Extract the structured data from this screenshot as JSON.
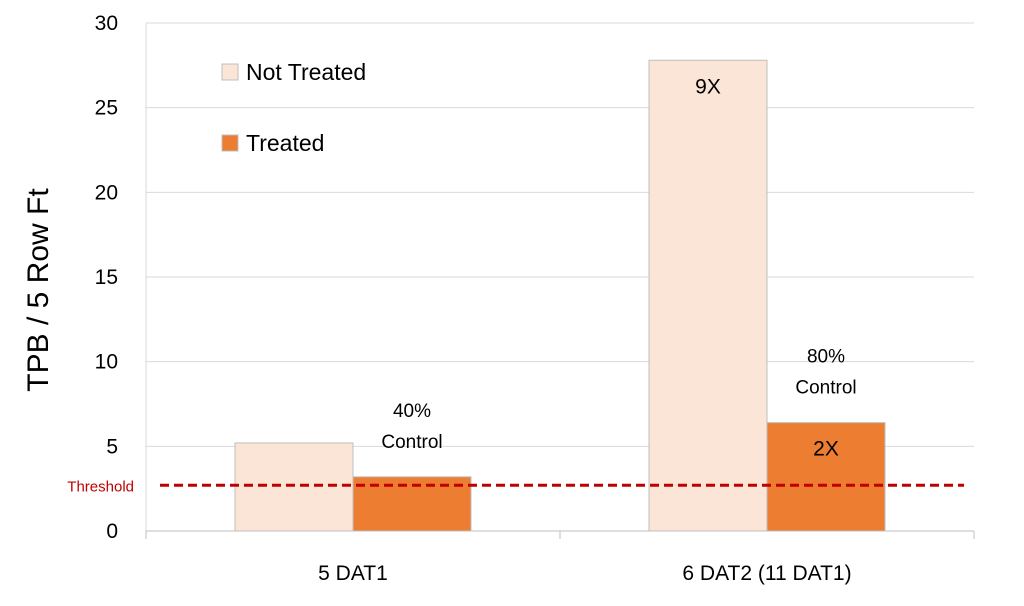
{
  "chart_data": {
    "type": "bar",
    "title": "",
    "xlabel": "",
    "ylabel": "TPB / 5 Row Ft",
    "ylim": [
      0,
      30
    ],
    "yticks": [
      0,
      5,
      10,
      15,
      20,
      25,
      30
    ],
    "grid": true,
    "legend_position": "top-left",
    "categories": [
      "5 DAT1",
      "6 DAT2 (11 DAT1)"
    ],
    "series": [
      {
        "name": "Not Treated",
        "color": "#fbe5d6",
        "values": [
          5.2,
          27.8
        ],
        "bar_labels": [
          "",
          "9X"
        ]
      },
      {
        "name": "Treated",
        "color": "#ed7d31",
        "values": [
          3.2,
          6.4
        ],
        "bar_labels": [
          "",
          "2X"
        ]
      }
    ],
    "annotations": [
      {
        "category": "5 DAT1",
        "lines": [
          "40%",
          "Control"
        ]
      },
      {
        "category": "6 DAT2 (11 DAT1)",
        "lines": [
          "80%",
          "Control"
        ]
      }
    ],
    "threshold": {
      "label": "Threshold",
      "value": 2.7,
      "color": "#c00000"
    }
  }
}
